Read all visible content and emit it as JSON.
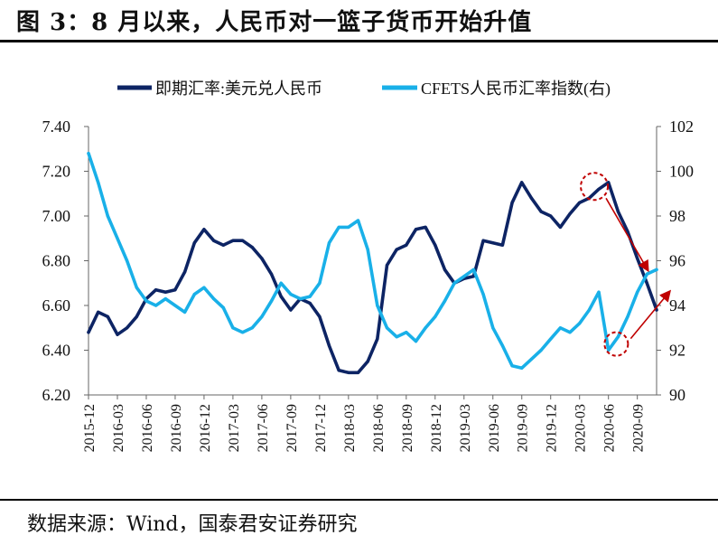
{
  "title": "图 3：8 月以来，人民币对一篮子货币开始升值",
  "source": "数据来源：Wind，国泰君安证券研究",
  "chart_data": {
    "type": "line",
    "title": "",
    "xlabel": "",
    "ylabel_left": "",
    "ylabel_right": "",
    "legend_position": "top",
    "grid": false,
    "colors": {
      "spot": "#0d2464",
      "cfets": "#19b0e8",
      "annotation": "#c00000"
    },
    "x_ticks": [
      "2015-12",
      "2016-03",
      "2016-06",
      "2016-09",
      "2016-12",
      "2017-03",
      "2017-06",
      "2017-09",
      "2017-12",
      "2018-03",
      "2018-06",
      "2018-09",
      "2018-12",
      "2019-03",
      "2019-06",
      "2019-09",
      "2019-12",
      "2020-03",
      "2020-06",
      "2020-09"
    ],
    "y_left": {
      "min": 6.2,
      "max": 7.4,
      "ticks": [
        "6.20",
        "6.40",
        "6.60",
        "6.80",
        "7.00",
        "7.20",
        "7.40"
      ]
    },
    "y_right": {
      "min": 90,
      "max": 102,
      "ticks": [
        "90",
        "92",
        "94",
        "96",
        "98",
        "100",
        "102"
      ]
    },
    "series": [
      {
        "name": "即期汇率:美元兑人民币",
        "axis": "left",
        "x": [
          "2015-12",
          "2016-01",
          "2016-02",
          "2016-03",
          "2016-04",
          "2016-05",
          "2016-06",
          "2016-07",
          "2016-08",
          "2016-09",
          "2016-10",
          "2016-11",
          "2016-12",
          "2017-01",
          "2017-02",
          "2017-03",
          "2017-04",
          "2017-05",
          "2017-06",
          "2017-07",
          "2017-08",
          "2017-09",
          "2017-10",
          "2017-11",
          "2017-12",
          "2018-01",
          "2018-02",
          "2018-03",
          "2018-04",
          "2018-05",
          "2018-06",
          "2018-07",
          "2018-08",
          "2018-09",
          "2018-10",
          "2018-11",
          "2018-12",
          "2019-01",
          "2019-02",
          "2019-03",
          "2019-04",
          "2019-05",
          "2019-06",
          "2019-07",
          "2019-08",
          "2019-09",
          "2019-10",
          "2019-11",
          "2019-12",
          "2020-01",
          "2020-02",
          "2020-03",
          "2020-04",
          "2020-05",
          "2020-06",
          "2020-07",
          "2020-08",
          "2020-09",
          "2020-10",
          "2020-11"
        ],
        "values": [
          6.48,
          6.57,
          6.55,
          6.47,
          6.5,
          6.55,
          6.63,
          6.67,
          6.66,
          6.67,
          6.75,
          6.88,
          6.94,
          6.89,
          6.87,
          6.89,
          6.89,
          6.86,
          6.81,
          6.74,
          6.64,
          6.58,
          6.63,
          6.61,
          6.55,
          6.42,
          6.31,
          6.3,
          6.3,
          6.35,
          6.45,
          6.78,
          6.85,
          6.87,
          6.94,
          6.95,
          6.87,
          6.76,
          6.7,
          6.72,
          6.73,
          6.89,
          6.88,
          6.87,
          7.06,
          7.15,
          7.08,
          7.02,
          7.0,
          6.95,
          7.01,
          7.06,
          7.08,
          7.12,
          7.15,
          7.02,
          6.93,
          6.81,
          6.7,
          6.58
        ]
      },
      {
        "name": "CFETS人民币汇率指数(右)",
        "axis": "right",
        "x": [
          "2015-12",
          "2016-01",
          "2016-02",
          "2016-03",
          "2016-04",
          "2016-05",
          "2016-06",
          "2016-07",
          "2016-08",
          "2016-09",
          "2016-10",
          "2016-11",
          "2016-12",
          "2017-01",
          "2017-02",
          "2017-03",
          "2017-04",
          "2017-05",
          "2017-06",
          "2017-07",
          "2017-08",
          "2017-09",
          "2017-10",
          "2017-11",
          "2017-12",
          "2018-01",
          "2018-02",
          "2018-03",
          "2018-04",
          "2018-05",
          "2018-06",
          "2018-07",
          "2018-08",
          "2018-09",
          "2018-10",
          "2018-11",
          "2018-12",
          "2019-01",
          "2019-02",
          "2019-03",
          "2019-04",
          "2019-05",
          "2019-06",
          "2019-07",
          "2019-08",
          "2019-09",
          "2019-10",
          "2019-11",
          "2019-12",
          "2020-01",
          "2020-02",
          "2020-03",
          "2020-04",
          "2020-05",
          "2020-06",
          "2020-07",
          "2020-08",
          "2020-09",
          "2020-10",
          "2020-11"
        ],
        "values": [
          100.8,
          99.5,
          98.0,
          97.0,
          96.0,
          94.8,
          94.2,
          94.0,
          94.3,
          94.0,
          93.7,
          94.5,
          94.8,
          94.3,
          93.9,
          93.0,
          92.8,
          93.0,
          93.5,
          94.2,
          95.0,
          94.5,
          94.3,
          94.4,
          95.0,
          96.8,
          97.5,
          97.5,
          97.8,
          96.5,
          94.0,
          93.0,
          92.6,
          92.8,
          92.4,
          93.0,
          93.5,
          94.2,
          95.0,
          95.3,
          95.6,
          94.5,
          93.0,
          92.2,
          91.3,
          91.2,
          91.6,
          92.0,
          92.5,
          93.0,
          92.8,
          93.2,
          93.8,
          94.6,
          92.0,
          92.6,
          93.5,
          94.6,
          95.4,
          95.6
        ]
      }
    ],
    "annotations": [
      {
        "type": "circle",
        "at": "2020-05",
        "series": "即期汇率:美元兑人民币"
      },
      {
        "type": "circle",
        "at": "2020-07",
        "series": "CFETS人民币汇率指数(右)"
      },
      {
        "type": "arrow",
        "direction": "down",
        "series": "即期汇率:美元兑人民币"
      },
      {
        "type": "arrow",
        "direction": "up",
        "series": "CFETS人民币汇率指数(右)"
      }
    ]
  }
}
